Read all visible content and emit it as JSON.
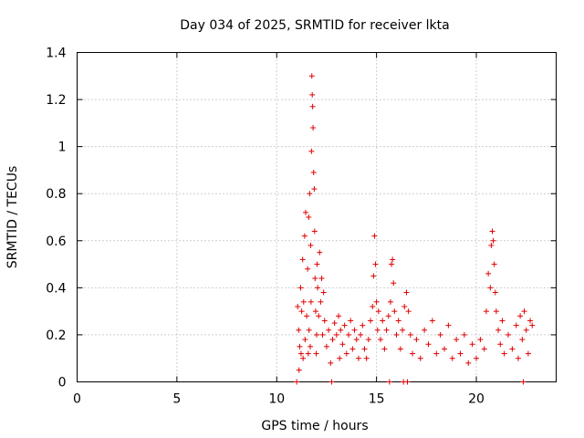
{
  "chart_data": {
    "type": "scatter",
    "title": "Day 034 of 2025, SRMTID for receiver lkta",
    "xlabel": "GPS time / hours",
    "ylabel": "SRMTID / TECUs",
    "xlim": [
      0,
      24
    ],
    "ylim": [
      0,
      1.4
    ],
    "x_ticks": [
      0,
      5,
      10,
      15,
      20
    ],
    "y_ticks": [
      0,
      0.2,
      0.4,
      0.6,
      0.8,
      1,
      1.2,
      1.4
    ],
    "x_tick_labels": [
      "0",
      "5",
      "10",
      "15",
      "20"
    ],
    "y_tick_labels": [
      "0",
      "0.2",
      "0.4",
      "0.6",
      "0.8",
      "1",
      "1.2",
      "1.4"
    ],
    "grid": true,
    "marker": "+",
    "color": "#e00000",
    "series": [
      {
        "name": "SRMTID",
        "points": [
          [
            11.0,
            0.0
          ],
          [
            11.05,
            0.32
          ],
          [
            11.1,
            0.22
          ],
          [
            11.12,
            0.05
          ],
          [
            11.15,
            0.15
          ],
          [
            11.2,
            0.4
          ],
          [
            11.22,
            0.12
          ],
          [
            11.25,
            0.3
          ],
          [
            11.3,
            0.52
          ],
          [
            11.32,
            0.1
          ],
          [
            11.35,
            0.34
          ],
          [
            11.4,
            0.62
          ],
          [
            11.42,
            0.18
          ],
          [
            11.45,
            0.72
          ],
          [
            11.5,
            0.28
          ],
          [
            11.55,
            0.48
          ],
          [
            11.58,
            0.12
          ],
          [
            11.6,
            0.7
          ],
          [
            11.62,
            0.22
          ],
          [
            11.65,
            0.8
          ],
          [
            11.68,
            0.15
          ],
          [
            11.7,
            0.58
          ],
          [
            11.72,
            0.34
          ],
          [
            11.74,
            0.98
          ],
          [
            11.76,
            1.3
          ],
          [
            11.78,
            1.22
          ],
          [
            11.8,
            1.17
          ],
          [
            11.82,
            1.08
          ],
          [
            11.85,
            0.89
          ],
          [
            11.88,
            0.82
          ],
          [
            11.9,
            0.64
          ],
          [
            11.92,
            0.44
          ],
          [
            11.95,
            0.3
          ],
          [
            11.98,
            0.12
          ],
          [
            12.0,
            0.2
          ],
          [
            12.02,
            0.5
          ],
          [
            12.05,
            0.4
          ],
          [
            12.1,
            0.28
          ],
          [
            12.15,
            0.55
          ],
          [
            12.2,
            0.34
          ],
          [
            12.25,
            0.44
          ],
          [
            12.3,
            0.2
          ],
          [
            12.35,
            0.38
          ],
          [
            12.4,
            0.26
          ],
          [
            12.5,
            0.15
          ],
          [
            12.6,
            0.22
          ],
          [
            12.7,
            0.08
          ],
          [
            12.75,
            0.0
          ],
          [
            12.8,
            0.18
          ],
          [
            12.9,
            0.25
          ],
          [
            13.0,
            0.2
          ],
          [
            13.1,
            0.28
          ],
          [
            13.15,
            0.1
          ],
          [
            13.2,
            0.22
          ],
          [
            13.3,
            0.16
          ],
          [
            13.4,
            0.24
          ],
          [
            13.5,
            0.12
          ],
          [
            13.6,
            0.2
          ],
          [
            13.7,
            0.26
          ],
          [
            13.8,
            0.14
          ],
          [
            13.9,
            0.22
          ],
          [
            14.0,
            0.18
          ],
          [
            14.1,
            0.1
          ],
          [
            14.2,
            0.2
          ],
          [
            14.3,
            0.24
          ],
          [
            14.4,
            0.14
          ],
          [
            14.5,
            0.1
          ],
          [
            14.6,
            0.18
          ],
          [
            14.7,
            0.26
          ],
          [
            14.8,
            0.32
          ],
          [
            14.85,
            0.45
          ],
          [
            14.9,
            0.62
          ],
          [
            14.95,
            0.5
          ],
          [
            15.0,
            0.34
          ],
          [
            15.05,
            0.22
          ],
          [
            15.1,
            0.3
          ],
          [
            15.2,
            0.18
          ],
          [
            15.3,
            0.26
          ],
          [
            15.4,
            0.14
          ],
          [
            15.5,
            0.22
          ],
          [
            15.6,
            0.28
          ],
          [
            15.65,
            0.0
          ],
          [
            15.7,
            0.34
          ],
          [
            15.75,
            0.5
          ],
          [
            15.8,
            0.52
          ],
          [
            15.85,
            0.42
          ],
          [
            15.9,
            0.3
          ],
          [
            16.0,
            0.2
          ],
          [
            16.1,
            0.26
          ],
          [
            16.2,
            0.14
          ],
          [
            16.3,
            0.22
          ],
          [
            16.35,
            0.0
          ],
          [
            16.4,
            0.32
          ],
          [
            16.5,
            0.38
          ],
          [
            16.55,
            0.0
          ],
          [
            16.6,
            0.3
          ],
          [
            16.7,
            0.2
          ],
          [
            16.8,
            0.12
          ],
          [
            17.0,
            0.18
          ],
          [
            17.2,
            0.1
          ],
          [
            17.4,
            0.22
          ],
          [
            17.6,
            0.16
          ],
          [
            17.8,
            0.26
          ],
          [
            18.0,
            0.12
          ],
          [
            18.2,
            0.2
          ],
          [
            18.4,
            0.14
          ],
          [
            18.6,
            0.24
          ],
          [
            18.8,
            0.1
          ],
          [
            19.0,
            0.18
          ],
          [
            19.2,
            0.12
          ],
          [
            19.4,
            0.2
          ],
          [
            19.6,
            0.08
          ],
          [
            19.8,
            0.16
          ],
          [
            20.0,
            0.1
          ],
          [
            20.2,
            0.18
          ],
          [
            20.4,
            0.14
          ],
          [
            20.5,
            0.3
          ],
          [
            20.6,
            0.46
          ],
          [
            20.7,
            0.4
          ],
          [
            20.75,
            0.58
          ],
          [
            20.8,
            0.64
          ],
          [
            20.85,
            0.6
          ],
          [
            20.9,
            0.5
          ],
          [
            20.95,
            0.38
          ],
          [
            21.0,
            0.3
          ],
          [
            21.1,
            0.22
          ],
          [
            21.2,
            0.16
          ],
          [
            21.3,
            0.26
          ],
          [
            21.4,
            0.12
          ],
          [
            21.6,
            0.2
          ],
          [
            21.8,
            0.14
          ],
          [
            22.0,
            0.24
          ],
          [
            22.1,
            0.1
          ],
          [
            22.2,
            0.28
          ],
          [
            22.3,
            0.18
          ],
          [
            22.35,
            0.0
          ],
          [
            22.4,
            0.3
          ],
          [
            22.5,
            0.22
          ],
          [
            22.6,
            0.12
          ],
          [
            22.7,
            0.26
          ],
          [
            22.8,
            0.24
          ]
        ]
      }
    ]
  }
}
